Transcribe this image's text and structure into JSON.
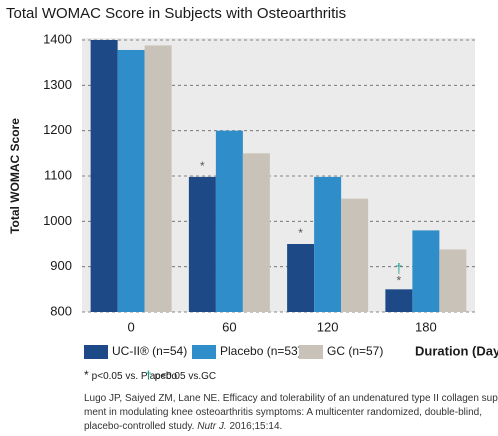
{
  "chart_data": {
    "type": "bar",
    "title": "Total WOMAC Score in Subjects with Osteoarthritis",
    "ylabel": "Total WOMAC Score",
    "xlabel": "Duration (Days)",
    "categories": [
      "0",
      "60",
      "120",
      "180"
    ],
    "series": [
      {
        "name": "UC-II® (n=54)",
        "color": "#1d4a86",
        "values": [
          1400,
          1098,
          950,
          850
        ],
        "significance_placebo": [
          null,
          "*",
          "*",
          "*"
        ],
        "significance_gc": [
          null,
          null,
          null,
          "†"
        ]
      },
      {
        "name": "Placebo (n=53)",
        "color": "#2f8dc9",
        "values": [
          1378,
          1200,
          1098,
          980
        ]
      },
      {
        "name": "GC (n=57)",
        "color": "#c9c2b8",
        "values": [
          1388,
          1150,
          1050,
          938
        ]
      }
    ],
    "ylim": [
      800,
      1400
    ],
    "yticks": [
      800,
      900,
      1000,
      1100,
      1200,
      1300,
      1400
    ],
    "grid": true
  },
  "footnotes": [
    {
      "symbol": "*",
      "text": "p<0.05 vs. Placebo"
    },
    {
      "symbol": "†",
      "text": "p<0.05 vs.GC"
    }
  ],
  "citation": [
    [
      "Lugo JP, Saiyed ZM, Lane NE. Efficacy and tolerability of an undenatured type II collagen supple-"
    ],
    [
      "ment in modulating knee osteoarthritis symptoms: A multicenter randomized, double-blind,"
    ],
    [
      "placebo-controlled study. ",
      "Nutr J.",
      " 2016;15:14."
    ]
  ]
}
